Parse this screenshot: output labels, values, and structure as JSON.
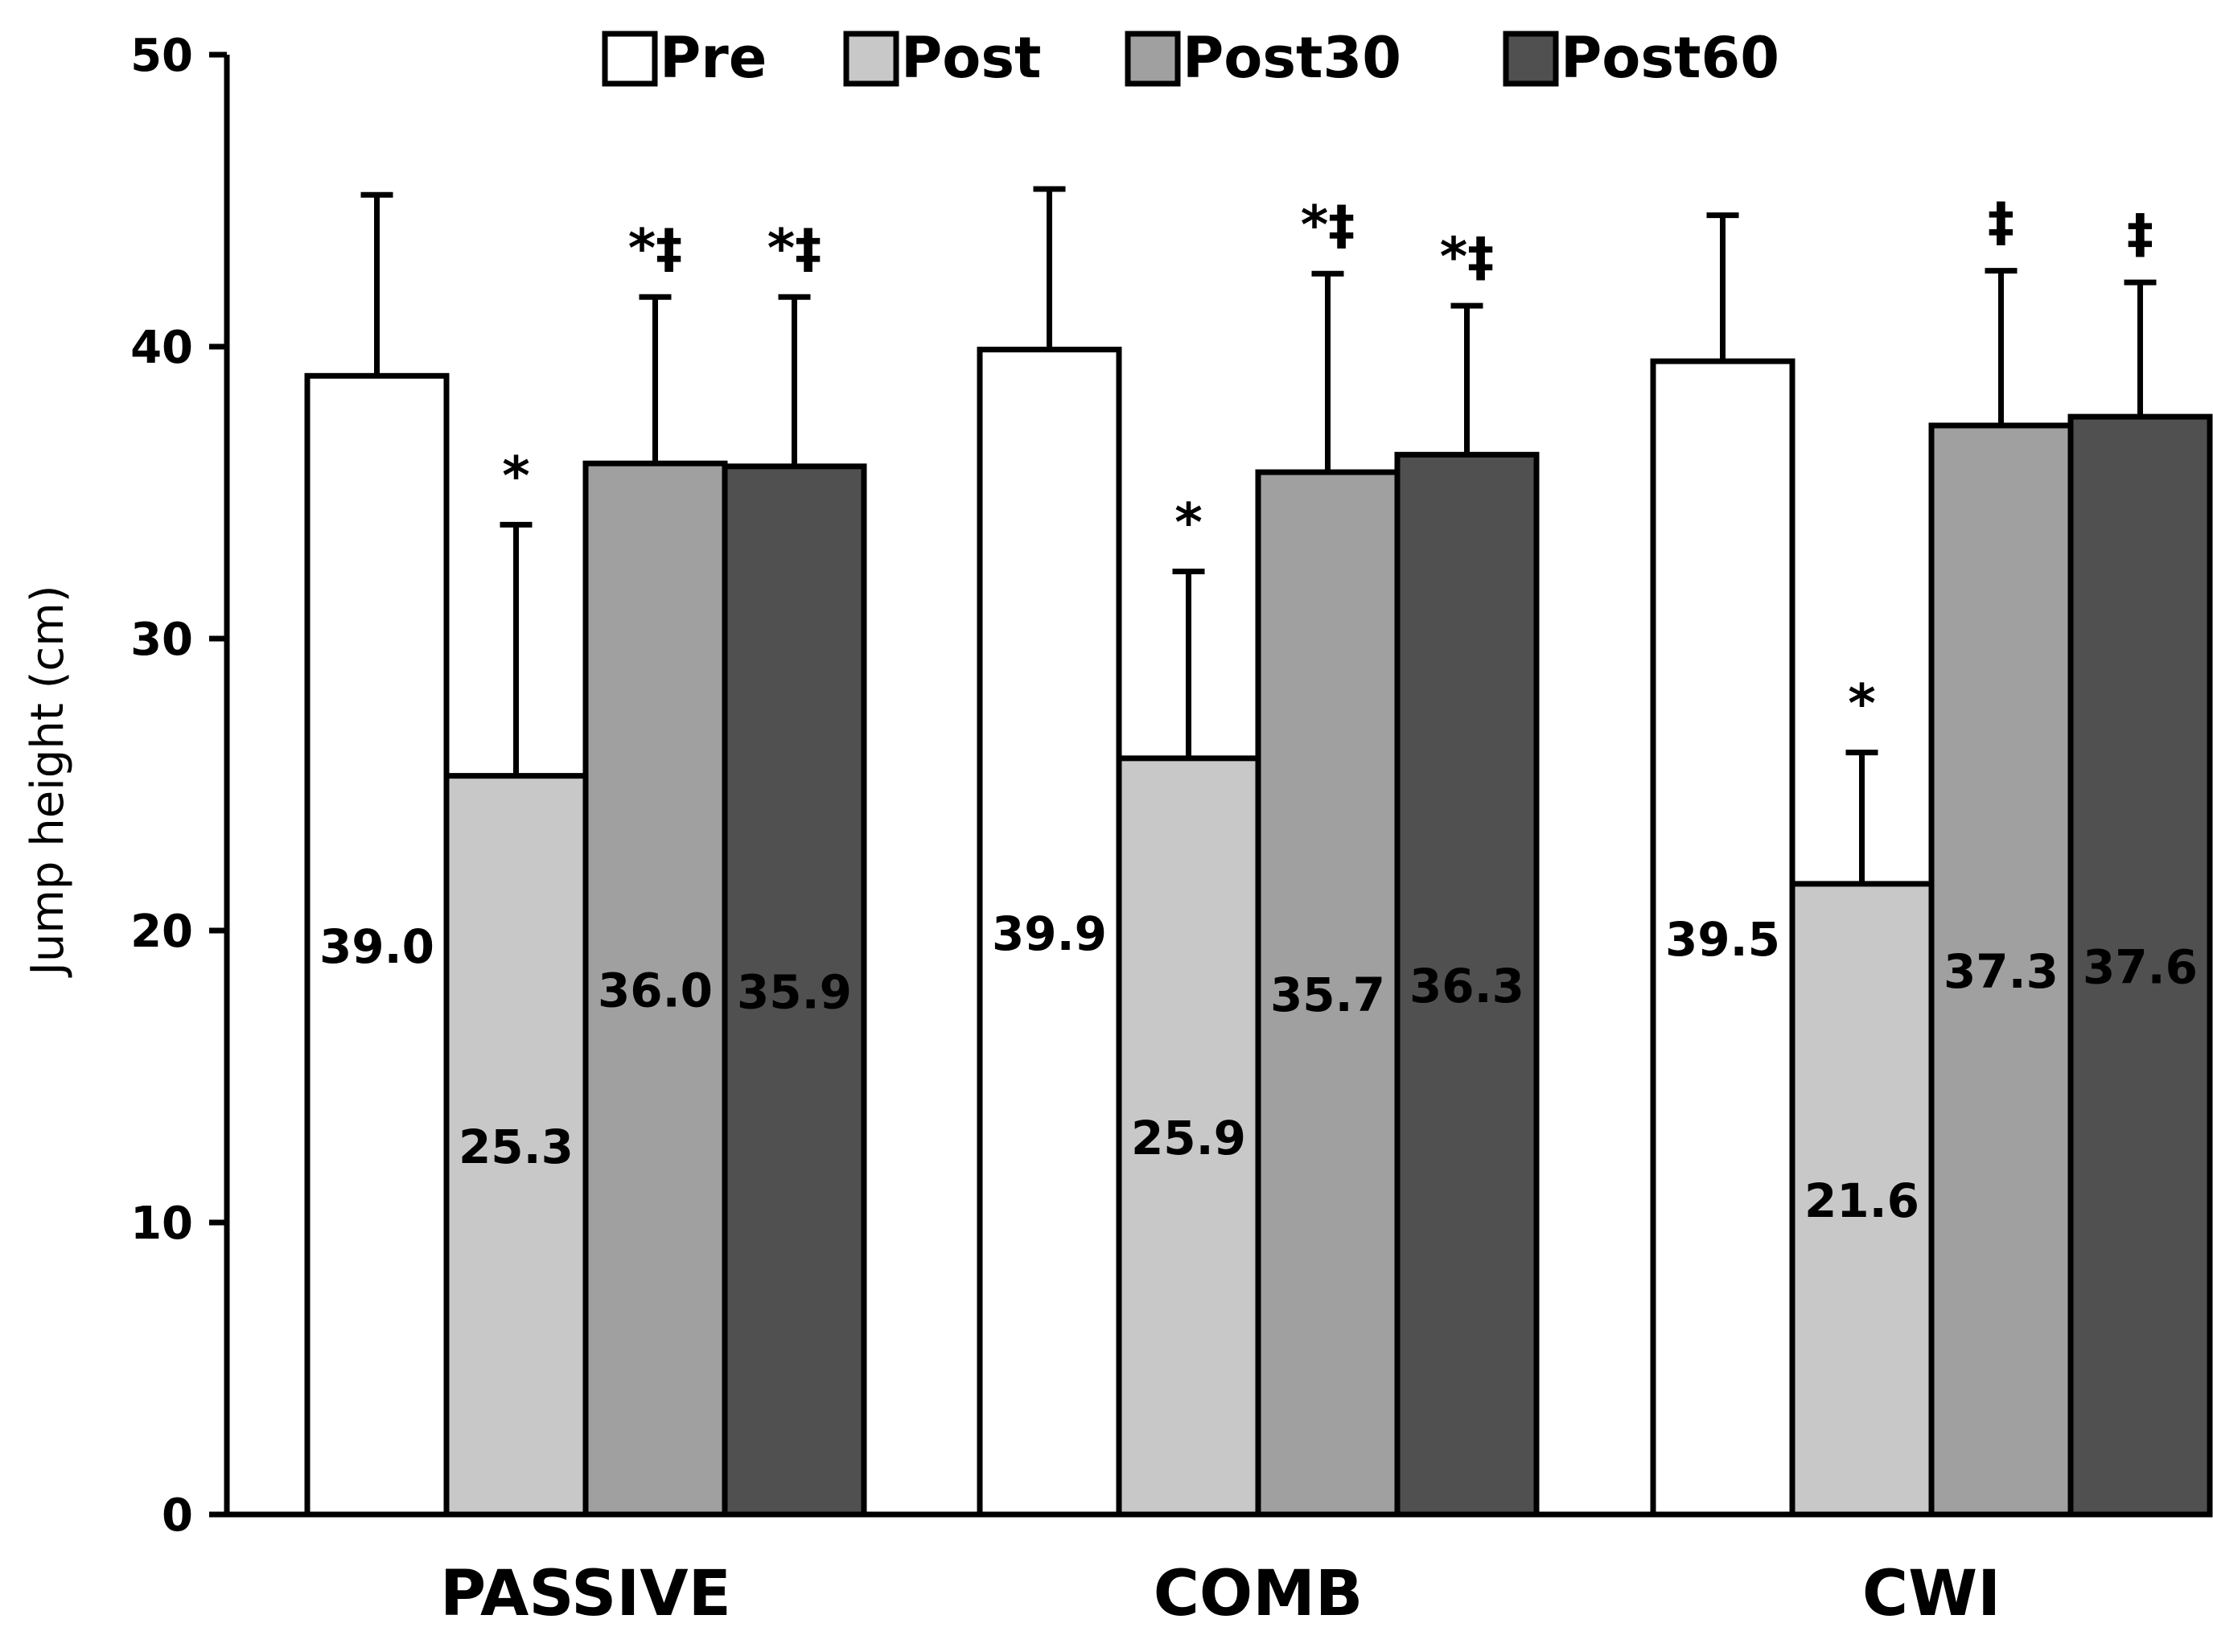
{
  "chart_data": {
    "type": "bar",
    "title": "",
    "xlabel": "",
    "ylabel": "Jump height (cm)",
    "ylim": [
      0,
      50
    ],
    "yticks": [
      0,
      10,
      20,
      30,
      40,
      50
    ],
    "grid": false,
    "legend_position": "top",
    "categories": [
      "PASSIVE",
      "COMB",
      "CWI"
    ],
    "series": [
      {
        "name": "Pre",
        "color": "#ffffff",
        "values": [
          39.0,
          39.9,
          39.5
        ],
        "errors": [
          6.2,
          5.5,
          5.0
        ],
        "labels": [
          "39.0",
          "39.9",
          "39.5"
        ],
        "marks": [
          "",
          "",
          ""
        ]
      },
      {
        "name": "Post",
        "color": "#c8c8c8",
        "values": [
          25.3,
          25.9,
          21.6
        ],
        "errors": [
          8.6,
          6.4,
          4.5
        ],
        "labels": [
          "25.3",
          "25.9",
          "21.6"
        ],
        "marks": [
          "*",
          "*",
          "*"
        ]
      },
      {
        "name": "Post30",
        "color": "#a0a0a0",
        "values": [
          36.0,
          35.7,
          37.3
        ],
        "errors": [
          5.7,
          6.8,
          5.3
        ],
        "labels": [
          "36.0",
          "35.7",
          "37.3"
        ],
        "marks": [
          "*‡",
          "*‡",
          "‡"
        ]
      },
      {
        "name": "Post60",
        "color": "#505050",
        "values": [
          35.9,
          36.3,
          37.6
        ],
        "errors": [
          5.8,
          5.1,
          4.6
        ],
        "labels": [
          "35.9",
          "36.3",
          "37.6"
        ],
        "marks": [
          "*‡",
          "*‡",
          "‡"
        ]
      }
    ]
  }
}
